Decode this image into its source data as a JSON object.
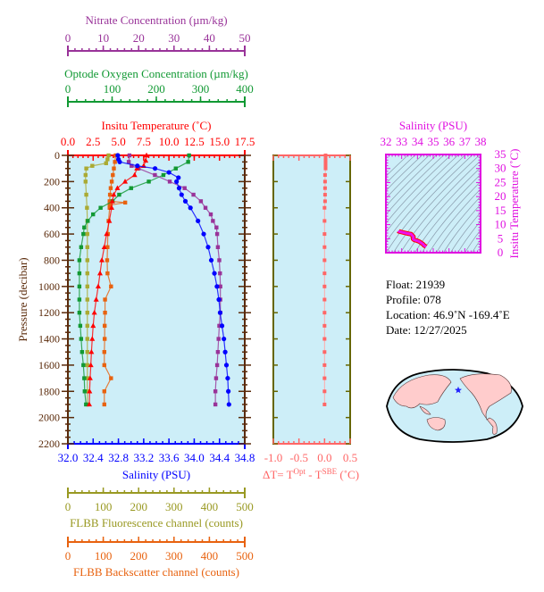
{
  "chart_data": [
    {
      "type": "line",
      "name": "profile",
      "ylabel": "Pressure (decibar)",
      "ylim": [
        0,
        2200
      ],
      "yticks": [
        0,
        200,
        400,
        600,
        800,
        1000,
        1200,
        1400,
        1600,
        1800,
        2000,
        2200
      ],
      "y_inverted": true,
      "background": "#cdeef8",
      "axes": [
        {
          "id": "nitrate",
          "label": "Nitrate Concentration (µm/kg)",
          "min": 0,
          "max": 50,
          "ticks": [
            0,
            10,
            20,
            30,
            40,
            50
          ],
          "minor": 2,
          "color": "#993399"
        },
        {
          "id": "oxygen",
          "label": "Optode Oxygen Concentration (µm/kg)",
          "min": 0,
          "max": 400,
          "ticks": [
            0,
            100,
            200,
            300,
            400
          ],
          "minor": 20,
          "color": "#119933"
        },
        {
          "id": "temperature",
          "label": "Insitu Temperature (˚C)",
          "min": 0,
          "max": 17.5,
          "ticks": [
            "0.0",
            "2.5",
            "5.0",
            "7.5",
            "10.0",
            "12.5",
            "15.0",
            "17.5"
          ],
          "minor": 0.5,
          "color": "#ff0000"
        },
        {
          "id": "salinity",
          "label": "Salinity (PSU)",
          "min": 32,
          "max": 34.8,
          "ticks": [
            "32.0",
            "32.4",
            "32.8",
            "33.2",
            "33.6",
            "34.0",
            "34.4",
            "34.8"
          ],
          "minor": 0.1,
          "color": "#0000ff"
        },
        {
          "id": "fluorescence",
          "label": "FLBB Fluorescence channel (counts)",
          "min": 0,
          "max": 500,
          "ticks": [
            0,
            100,
            200,
            300,
            400,
            500
          ],
          "minor": 20,
          "color": "#999922"
        },
        {
          "id": "backscatter",
          "label": "FLBB Backscatter channel (counts)",
          "min": 0,
          "max": 500,
          "ticks": [
            0,
            100,
            200,
            300,
            400,
            500
          ],
          "minor": 20,
          "color": "#e8620f"
        }
      ],
      "series": [
        {
          "axis": "fluorescence",
          "marker": "square",
          "color": "#aaaa33",
          "pressure": [
            0,
            30,
            60,
            80,
            100,
            150,
            200,
            300,
            400,
            500,
            600,
            700,
            800,
            900,
            1000,
            1100,
            1200,
            1300,
            1400,
            1500,
            1600,
            1700,
            1800,
            1900
          ],
          "values": [
            115,
            112,
            108,
            69,
            52,
            50,
            50,
            52,
            54,
            55,
            55,
            55,
            55,
            55,
            55,
            55,
            55,
            55,
            55,
            55,
            55,
            55,
            55,
            55
          ]
        },
        {
          "axis": "backscatter",
          "marker": "square",
          "color": "#e8620f",
          "pressure": [
            0,
            50,
            100,
            150,
            200,
            250,
            300,
            350,
            360,
            380,
            400,
            500,
            600,
            700,
            800,
            900,
            1000,
            1100,
            1200,
            1300,
            1400,
            1500,
            1600,
            1700,
            1800,
            1900
          ],
          "values": [
            135,
            133,
            130,
            127,
            124,
            121,
            119,
            118,
            162,
            118,
            118,
            115,
            113,
            112,
            111,
            112,
            122,
            105,
            105,
            104,
            104,
            103,
            103,
            122,
            103,
            103
          ]
        },
        {
          "axis": "oxygen",
          "marker": "square",
          "color": "#119933",
          "pressure": [
            0,
            50,
            100,
            150,
            200,
            250,
            300,
            350,
            400,
            450,
            500,
            550,
            600,
            700,
            800,
            900,
            1000,
            1100,
            1200,
            1300,
            1400,
            1500,
            1600,
            1700,
            1800,
            1900
          ],
          "values": [
            274,
            272,
            244,
            216,
            183,
            143,
            116,
            101,
            74,
            57,
            45,
            37,
            35,
            30,
            26,
            26,
            26,
            26,
            26,
            28,
            30,
            32,
            35,
            37,
            38,
            41
          ]
        },
        {
          "axis": "nitrate",
          "marker": "square",
          "color": "#993399",
          "pressure": [
            0,
            50,
            80,
            100,
            150,
            200,
            250,
            300,
            350,
            400,
            450,
            500,
            550,
            600,
            700,
            800,
            900,
            1000,
            1100,
            1200,
            1300,
            1400,
            1500,
            1600,
            1700,
            1800,
            1900
          ],
          "values": [
            17.4,
            17.2,
            18,
            20,
            24.6,
            28.8,
            33,
            35.5,
            37.6,
            38.9,
            40.4,
            41,
            42,
            42.2,
            42.4,
            42.8,
            43,
            43.1,
            43.1,
            43.1,
            42.8,
            42.6,
            42.4,
            42.2,
            41.9,
            41.7,
            41.7
          ]
        },
        {
          "axis": "temperature",
          "marker": "triangle",
          "color": "#ff0000",
          "pressure": [
            0,
            40,
            80,
            100,
            150,
            200,
            250,
            300,
            350,
            400,
            500,
            600,
            700,
            800,
            900,
            1000,
            1100,
            1200,
            1300,
            1400,
            1500,
            1600,
            1700,
            1800,
            1900
          ],
          "values": [
            7.78,
            7.7,
            7.5,
            6.83,
            6.6,
            5.66,
            4.9,
            4.54,
            4.4,
            4.33,
            4.1,
            3.83,
            3.6,
            3.36,
            3.18,
            3.0,
            2.8,
            2.62,
            2.5,
            2.41,
            2.33,
            2.27,
            2.2,
            2.15,
            2.12
          ]
        },
        {
          "axis": "salinity",
          "marker": "circle",
          "color": "#0000ff",
          "pressure": [
            0,
            30,
            50,
            80,
            100,
            130,
            170,
            200,
            250,
            300,
            350,
            400,
            500,
            600,
            700,
            800,
            900,
            1000,
            1100,
            1200,
            1300,
            1400,
            1500,
            1600,
            1700,
            1800,
            1900
          ],
          "values": [
            32.79,
            32.8,
            32.82,
            33.1,
            33.38,
            33.6,
            33.75,
            33.72,
            33.76,
            33.8,
            33.86,
            33.94,
            34.06,
            34.15,
            34.22,
            34.27,
            34.32,
            34.36,
            34.39,
            34.41,
            34.44,
            34.47,
            34.49,
            34.51,
            34.53,
            34.54,
            34.55
          ]
        }
      ]
    },
    {
      "type": "line",
      "name": "delta-t",
      "xlabel": "ΔT= T",
      "xlabel_sup1": "Opt",
      "xlabel_mid": " - T",
      "xlabel_sup2": "SBE",
      "xlabel_end": " (˚C)",
      "xlim": [
        -1.0,
        0.5
      ],
      "xticks": [
        "-1.0",
        "-0.5",
        "0.0",
        "0.5"
      ],
      "color": "#ff6666",
      "pressure": [
        0,
        20,
        40,
        60,
        80,
        100,
        150,
        200,
        250,
        300,
        350,
        400,
        500,
        600,
        700,
        800,
        900,
        1000,
        1100,
        1200,
        1300,
        1400,
        1500,
        1600,
        1700,
        1800,
        1900
      ],
      "values": [
        0.02,
        0.02,
        0.02,
        0.02,
        0.02,
        0.02,
        0.01,
        0.01,
        0.01,
        0.01,
        0.01,
        0.0,
        0.0,
        0.0,
        0.0,
        0.0,
        0.0,
        0.0,
        0.0,
        0.0,
        0.0,
        0.0,
        0.0,
        0.0,
        0.0,
        0.0,
        0.0
      ]
    },
    {
      "type": "line",
      "name": "ts-diagram",
      "title": "Salinity (PSU)",
      "ylabel": "Insitu Temperature (˚C)",
      "xlim": [
        32,
        38
      ],
      "ylim": [
        0,
        35
      ],
      "xticks": [
        32,
        33,
        34,
        35,
        36,
        37,
        38
      ],
      "yticks": [
        0,
        5,
        10,
        15,
        20,
        25,
        30,
        35
      ],
      "color": "#ee11ee",
      "salinity": [
        32.79,
        32.82,
        33.1,
        33.38,
        33.6,
        33.75,
        33.72,
        33.8,
        33.94,
        34.06,
        34.15,
        34.27,
        34.36,
        34.41,
        34.47,
        34.51,
        34.55
      ],
      "temperature": [
        7.78,
        7.6,
        7.2,
        6.83,
        6.6,
        5.66,
        4.9,
        4.54,
        4.33,
        4.1,
        3.83,
        3.36,
        3.0,
        2.62,
        2.41,
        2.27,
        2.12
      ]
    }
  ],
  "info": {
    "float": "Float:  21939",
    "profile": "Profile:  078",
    "location": "Location:  46.9˚N  -169.4˚E",
    "date": "Date:  12/27/2025"
  },
  "map": {
    "marker": "blue-star",
    "ocean_color": "#cdeef8",
    "land_color": "#ffcccc"
  }
}
